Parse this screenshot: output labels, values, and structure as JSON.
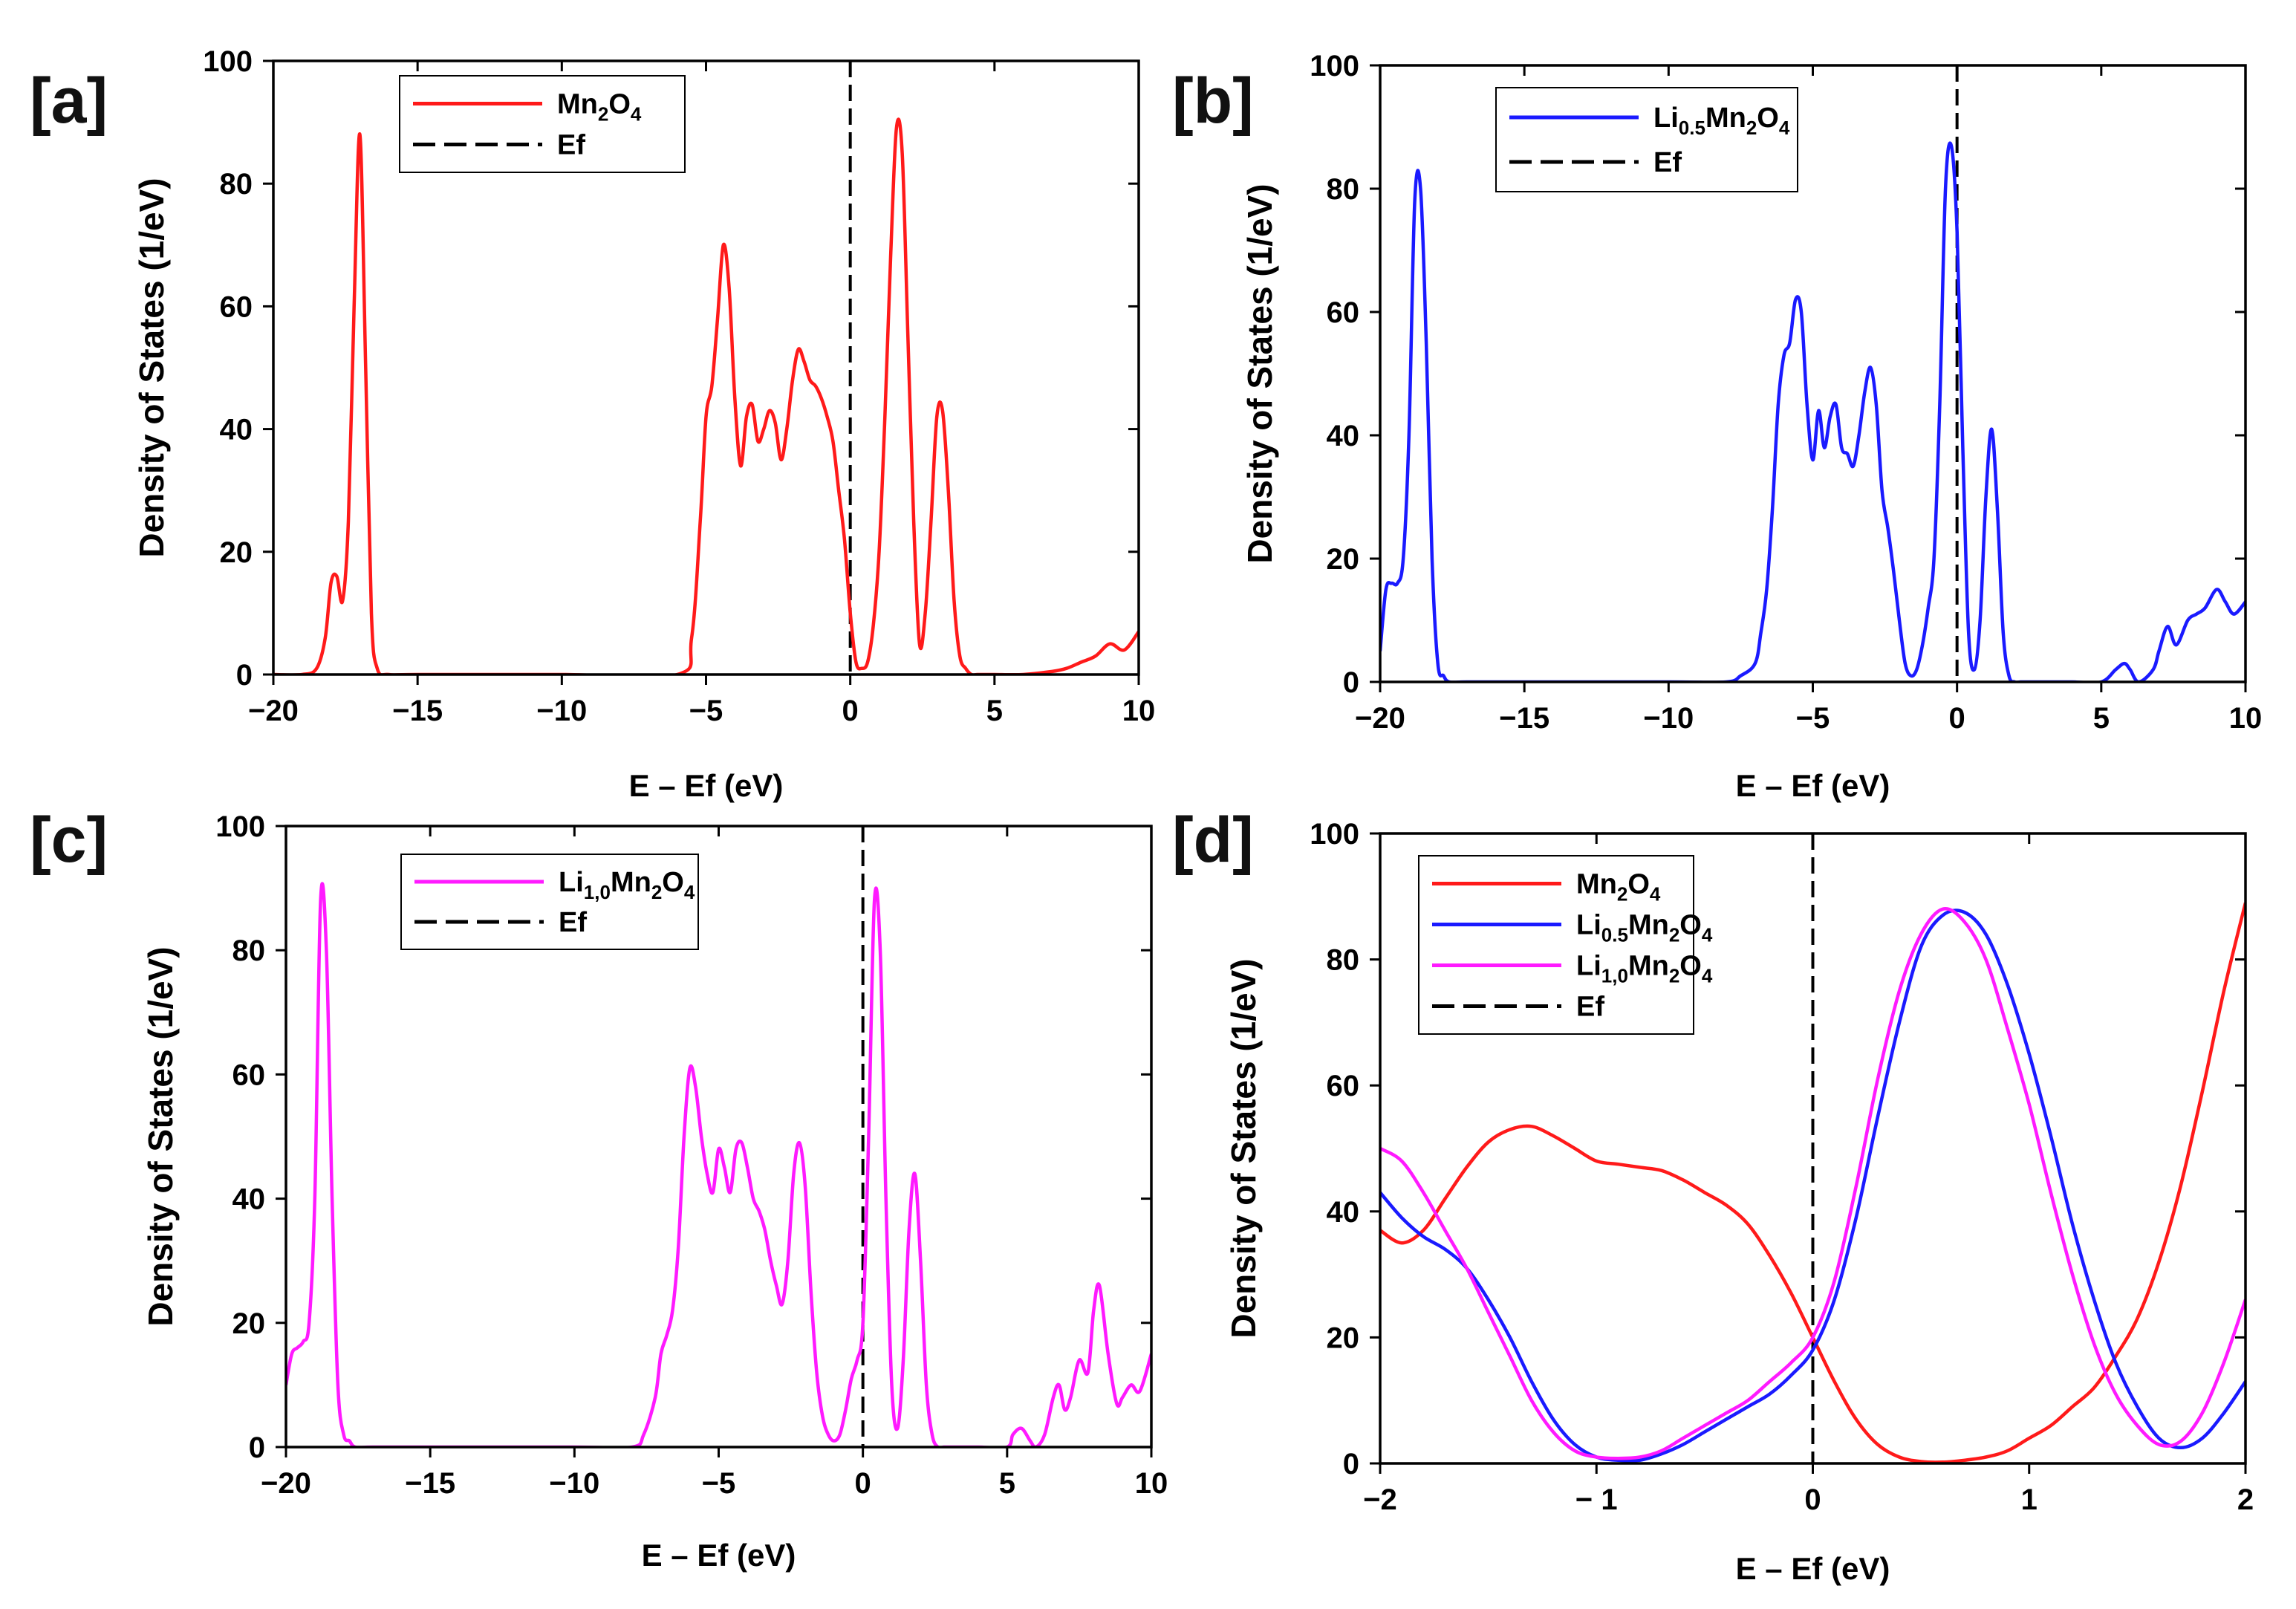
{
  "chart_data": [
    {
      "panel": "[a]",
      "type": "line",
      "xlabel": "E – Ef (eV)",
      "ylabel": "Density of States (1/eV)",
      "xlim": [
        -20,
        10
      ],
      "ylim": [
        0,
        100
      ],
      "xticks": [
        -20,
        -15,
        -10,
        -5,
        0,
        5,
        10
      ],
      "xtick_labels": [
        "−20",
        "−15",
        "−10",
        "−5",
        "0",
        "5",
        "10"
      ],
      "yticks": [
        0,
        20,
        40,
        60,
        80,
        100
      ],
      "ytick_labels": [
        "0",
        "20",
        "40",
        "60",
        "80",
        "100"
      ],
      "legend": [
        {
          "base": "Mn",
          "sub": "2",
          "mid": "O",
          "sub2": "4",
          "color": "#ff1a1a",
          "dash": "solid"
        },
        {
          "text": "Ef",
          "color": "#000000",
          "dash": "dashed"
        }
      ],
      "vline_x": 0,
      "series": [
        {
          "name": "Mn2O4",
          "color": "#ff1a1a",
          "x": [
            -20,
            -19,
            -18.5,
            -18.2,
            -18.0,
            -17.8,
            -17.6,
            -17.4,
            -17.2,
            -17.0,
            -16.8,
            -16.6,
            -16.4,
            -16.0,
            -15,
            -10,
            -6.0,
            -5.5,
            -5.2,
            -5.0,
            -4.8,
            -4.6,
            -4.4,
            -4.2,
            -4.0,
            -3.8,
            -3.6,
            -3.4,
            -3.2,
            -3.0,
            -2.8,
            -2.6,
            -2.4,
            -2.2,
            -2.0,
            -1.8,
            -1.6,
            -1.4,
            -1.2,
            -1.0,
            -0.8,
            -0.6,
            -0.4,
            -0.2,
            0.0,
            0.2,
            0.4,
            0.6,
            0.8,
            1.0,
            1.2,
            1.4,
            1.6,
            1.8,
            2.0,
            2.2,
            2.4,
            2.6,
            2.8,
            3.0,
            3.2,
            3.4,
            3.6,
            3.8,
            4.0,
            4.2,
            4.4,
            4.6,
            5.0,
            6.0,
            7.0,
            7.5,
            8.0,
            8.5,
            9.0,
            9.5,
            10.0
          ],
          "y": [
            0,
            0,
            1,
            6,
            15,
            16,
            12,
            25,
            60,
            88,
            50,
            10,
            1,
            0,
            0,
            0,
            0,
            6,
            25,
            42,
            47,
            58,
            70,
            63,
            45,
            34,
            42,
            44,
            38,
            40,
            43,
            41,
            35,
            40,
            48,
            53,
            51,
            48,
            47,
            45,
            42,
            38,
            30,
            22,
            10,
            2,
            1,
            2,
            8,
            20,
            42,
            68,
            89,
            85,
            55,
            25,
            5,
            10,
            25,
            42,
            43,
            30,
            12,
            3,
            1,
            0,
            0,
            0,
            0,
            0,
            0.5,
            1,
            2,
            3,
            5,
            4,
            7
          ]
        }
      ]
    },
    {
      "panel": "[b]",
      "type": "line",
      "xlabel": "E – Ef (eV)",
      "ylabel": "Density of States (1/eV)",
      "xlim": [
        -20,
        10
      ],
      "ylim": [
        0,
        100
      ],
      "xticks": [
        -20,
        -15,
        -10,
        -5,
        0,
        5,
        10
      ],
      "xtick_labels": [
        "−20",
        "−15",
        "−10",
        "−5",
        "0",
        "5",
        "10"
      ],
      "yticks": [
        0,
        20,
        40,
        60,
        80,
        100
      ],
      "ytick_labels": [
        "0",
        "20",
        "40",
        "60",
        "80",
        "100"
      ],
      "legend": [
        {
          "base": "Li",
          "sub": "0.5",
          "mid": "Mn",
          "sub2": "2",
          "tail": "O",
          "sub3": "4",
          "color": "#1a1aff",
          "dash": "solid"
        },
        {
          "text": "Ef",
          "color": "#000000",
          "dash": "dashed"
        }
      ],
      "vline_x": 0,
      "series": [
        {
          "name": "Li0.5Mn2O4",
          "color": "#1a1aff",
          "x": [
            -20,
            -19.8,
            -19.6,
            -19.4,
            -19.2,
            -19.0,
            -18.8,
            -18.6,
            -18.4,
            -18.2,
            -18.0,
            -17.8,
            -17.6,
            -17.0,
            -15,
            -10,
            -8.0,
            -7.5,
            -7.0,
            -6.8,
            -6.6,
            -6.4,
            -6.2,
            -6.0,
            -5.8,
            -5.6,
            -5.4,
            -5.2,
            -5.0,
            -4.8,
            -4.6,
            -4.4,
            -4.2,
            -4.0,
            -3.8,
            -3.6,
            -3.4,
            -3.2,
            -3.0,
            -2.8,
            -2.6,
            -2.4,
            -2.2,
            -2.0,
            -1.8,
            -1.6,
            -1.4,
            -1.2,
            -1.0,
            -0.8,
            -0.6,
            -0.4,
            -0.2,
            0.0,
            0.2,
            0.4,
            0.6,
            0.8,
            1.0,
            1.2,
            1.4,
            1.6,
            1.8,
            2.0,
            2.2,
            2.4,
            2.6,
            2.8,
            3.0,
            3.2,
            4.0,
            5.0,
            5.5,
            5.8,
            6.0,
            6.3,
            6.8,
            7.0,
            7.3,
            7.6,
            8.0,
            8.3,
            8.6,
            9.0,
            9.3,
            9.6,
            10.0
          ],
          "y": [
            5,
            15,
            16,
            16,
            20,
            40,
            78,
            80,
            55,
            20,
            3,
            1,
            0,
            0,
            0,
            0,
            0,
            1,
            3,
            8,
            15,
            28,
            45,
            53,
            55,
            62,
            60,
            45,
            36,
            44,
            38,
            43,
            45,
            38,
            37,
            35,
            40,
            47,
            51,
            45,
            31,
            25,
            18,
            10,
            3,
            1,
            2,
            6,
            12,
            20,
            45,
            80,
            87,
            73,
            38,
            8,
            2,
            10,
            30,
            41,
            28,
            8,
            1,
            0,
            0,
            0,
            0,
            0,
            0,
            0,
            0,
            0,
            2,
            3,
            2,
            0,
            2,
            5,
            9,
            6,
            10,
            11,
            12,
            15,
            13,
            11,
            13
          ]
        }
      ]
    },
    {
      "panel": "[c]",
      "type": "line",
      "xlabel": "E – Ef (eV)",
      "ylabel": "Density of States (1/eV)",
      "xlim": [
        -20,
        10
      ],
      "ylim": [
        0,
        100
      ],
      "xticks": [
        -20,
        -15,
        -10,
        -5,
        0,
        5,
        10
      ],
      "xtick_labels": [
        "−20",
        "−15",
        "−10",
        "−5",
        "0",
        "5",
        "10"
      ],
      "yticks": [
        0,
        20,
        40,
        60,
        80,
        100
      ],
      "ytick_labels": [
        "0",
        "20",
        "40",
        "60",
        "80",
        "100"
      ],
      "legend": [
        {
          "base": "Li",
          "sub": "1,0",
          "mid": "Mn",
          "sub2": "2",
          "tail": "O",
          "sub3": "4",
          "color": "#ff1aff",
          "dash": "solid"
        },
        {
          "text": "Ef",
          "color": "#000000",
          "dash": "dashed"
        }
      ],
      "vline_x": 0,
      "series": [
        {
          "name": "Li1,0Mn2O4",
          "color": "#ff1aff",
          "x": [
            -20,
            -19.8,
            -19.6,
            -19.4,
            -19.2,
            -19.0,
            -18.8,
            -18.6,
            -18.4,
            -18.2,
            -18.0,
            -17.8,
            -17.6,
            -17.0,
            -15,
            -10,
            -8.0,
            -7.6,
            -7.2,
            -7.0,
            -6.8,
            -6.6,
            -6.4,
            -6.2,
            -6.0,
            -5.8,
            -5.6,
            -5.4,
            -5.2,
            -5.0,
            -4.8,
            -4.6,
            -4.4,
            -4.2,
            -4.0,
            -3.8,
            -3.6,
            -3.4,
            -3.2,
            -3.0,
            -2.8,
            -2.6,
            -2.4,
            -2.2,
            -2.0,
            -1.8,
            -1.6,
            -1.4,
            -1.2,
            -1.0,
            -0.8,
            -0.6,
            -0.4,
            -0.2,
            0.0,
            0.2,
            0.4,
            0.6,
            0.8,
            1.0,
            1.2,
            1.4,
            1.6,
            1.8,
            2.0,
            2.2,
            2.4,
            2.6,
            2.8,
            3.0,
            3.2,
            4.0,
            5.0,
            5.2,
            5.5,
            5.8,
            6.0,
            6.3,
            6.6,
            6.8,
            7.0,
            7.2,
            7.5,
            7.8,
            8.0,
            8.2,
            8.5,
            8.8,
            9.0,
            9.3,
            9.6,
            10.0
          ],
          "y": [
            10,
            15,
            16,
            17,
            20,
            40,
            88,
            80,
            40,
            10,
            2,
            1,
            0,
            0,
            0,
            0,
            0,
            2,
            8,
            15,
            18,
            22,
            32,
            50,
            61,
            58,
            50,
            44,
            41,
            48,
            45,
            41,
            48,
            49,
            45,
            40,
            38,
            35,
            30,
            26,
            23,
            30,
            44,
            49,
            42,
            25,
            12,
            5,
            2,
            1,
            2,
            6,
            11,
            14,
            20,
            50,
            88,
            80,
            40,
            10,
            3,
            14,
            35,
            44,
            30,
            10,
            2,
            0,
            0,
            0,
            0,
            0,
            0,
            2,
            3,
            1,
            0,
            2,
            8,
            10,
            6,
            8,
            14,
            12,
            22,
            26,
            15,
            7,
            8,
            10,
            9,
            15
          ]
        }
      ]
    },
    {
      "panel": "[d]",
      "type": "line",
      "xlabel": "E – Ef (eV)",
      "ylabel": "Density of States (1/eV)",
      "xlim": [
        -2,
        2
      ],
      "ylim": [
        0,
        100
      ],
      "xticks": [
        -2,
        -1,
        0,
        1,
        2
      ],
      "xtick_labels": [
        "−2",
        "− 1",
        "0",
        "1",
        "2"
      ],
      "yticks": [
        0,
        20,
        40,
        60,
        80,
        100
      ],
      "ytick_labels": [
        "0",
        "20",
        "40",
        "60",
        "80",
        "100"
      ],
      "legend": [
        {
          "base": "Mn",
          "sub": "2",
          "mid": "O",
          "sub2": "4",
          "color": "#ff1a1a",
          "dash": "solid"
        },
        {
          "base": "Li",
          "sub": "0.5",
          "mid": "Mn",
          "sub2": "2",
          "tail": "O",
          "sub3": "4",
          "color": "#1a1aff",
          "dash": "solid"
        },
        {
          "base": "Li",
          "sub": "1,0",
          "mid": "Mn",
          "sub2": "2",
          "tail": "O",
          "sub3": "4",
          "color": "#ff1aff",
          "dash": "solid"
        },
        {
          "text": "Ef",
          "color": "#000000",
          "dash": "dashed"
        }
      ],
      "vline_x": 0,
      "series": [
        {
          "name": "Mn2O4",
          "color": "#ff1a1a",
          "x": [
            -2.0,
            -1.9,
            -1.8,
            -1.7,
            -1.6,
            -1.5,
            -1.4,
            -1.3,
            -1.2,
            -1.1,
            -1.0,
            -0.9,
            -0.8,
            -0.7,
            -0.6,
            -0.5,
            -0.4,
            -0.3,
            -0.2,
            -0.1,
            0.0,
            0.1,
            0.2,
            0.3,
            0.4,
            0.5,
            0.6,
            0.7,
            0.8,
            0.9,
            1.0,
            1.1,
            1.2,
            1.3,
            1.4,
            1.5,
            1.6,
            1.7,
            1.8,
            1.9,
            2.0
          ],
          "y": [
            37,
            35,
            37,
            42,
            47,
            51,
            53,
            53.5,
            52,
            50,
            48,
            47.5,
            47,
            46.5,
            45,
            43,
            41,
            38,
            33,
            27,
            20,
            13,
            7,
            3,
            1,
            0.3,
            0.2,
            0.5,
            1,
            2,
            4,
            6,
            9,
            12,
            17,
            23,
            32,
            44,
            59,
            75,
            89
          ]
        },
        {
          "name": "Li0.5Mn2O4",
          "color": "#1a1aff",
          "x": [
            -2.0,
            -1.9,
            -1.8,
            -1.7,
            -1.6,
            -1.5,
            -1.4,
            -1.3,
            -1.2,
            -1.1,
            -1.0,
            -0.9,
            -0.8,
            -0.7,
            -0.6,
            -0.5,
            -0.4,
            -0.3,
            -0.2,
            -0.1,
            0.0,
            0.1,
            0.2,
            0.3,
            0.4,
            0.5,
            0.6,
            0.7,
            0.8,
            0.9,
            1.0,
            1.1,
            1.2,
            1.3,
            1.4,
            1.5,
            1.6,
            1.7,
            1.8,
            1.9,
            2.0
          ],
          "y": [
            43,
            39,
            36,
            34,
            31,
            26,
            20,
            13,
            7,
            3,
            1,
            0.5,
            0.5,
            1.5,
            3,
            5,
            7,
            9,
            11,
            14,
            18,
            26,
            39,
            55,
            70,
            82,
            87,
            87.5,
            84,
            76,
            65,
            52,
            38,
            26,
            16,
            9,
            4,
            2.5,
            4,
            8,
            13
          ]
        },
        {
          "name": "Li1,0Mn2O4",
          "color": "#ff1aff",
          "x": [
            -2.0,
            -1.9,
            -1.8,
            -1.7,
            -1.6,
            -1.5,
            -1.4,
            -1.3,
            -1.2,
            -1.1,
            -1.0,
            -0.9,
            -0.8,
            -0.7,
            -0.6,
            -0.5,
            -0.4,
            -0.3,
            -0.2,
            -0.1,
            0.0,
            0.1,
            0.2,
            0.3,
            0.4,
            0.5,
            0.6,
            0.7,
            0.8,
            0.9,
            1.0,
            1.1,
            1.2,
            1.3,
            1.4,
            1.5,
            1.6,
            1.7,
            1.8,
            1.9,
            2.0
          ],
          "y": [
            50,
            48,
            43,
            37,
            31,
            24,
            17,
            10,
            5,
            2,
            1,
            0.8,
            1,
            2,
            4,
            6,
            8,
            10,
            13,
            16,
            20,
            29,
            44,
            61,
            75,
            84,
            88,
            86,
            80,
            69,
            57,
            43,
            30,
            19,
            11,
            6,
            3,
            3.5,
            8,
            16,
            26
          ]
        }
      ]
    }
  ]
}
